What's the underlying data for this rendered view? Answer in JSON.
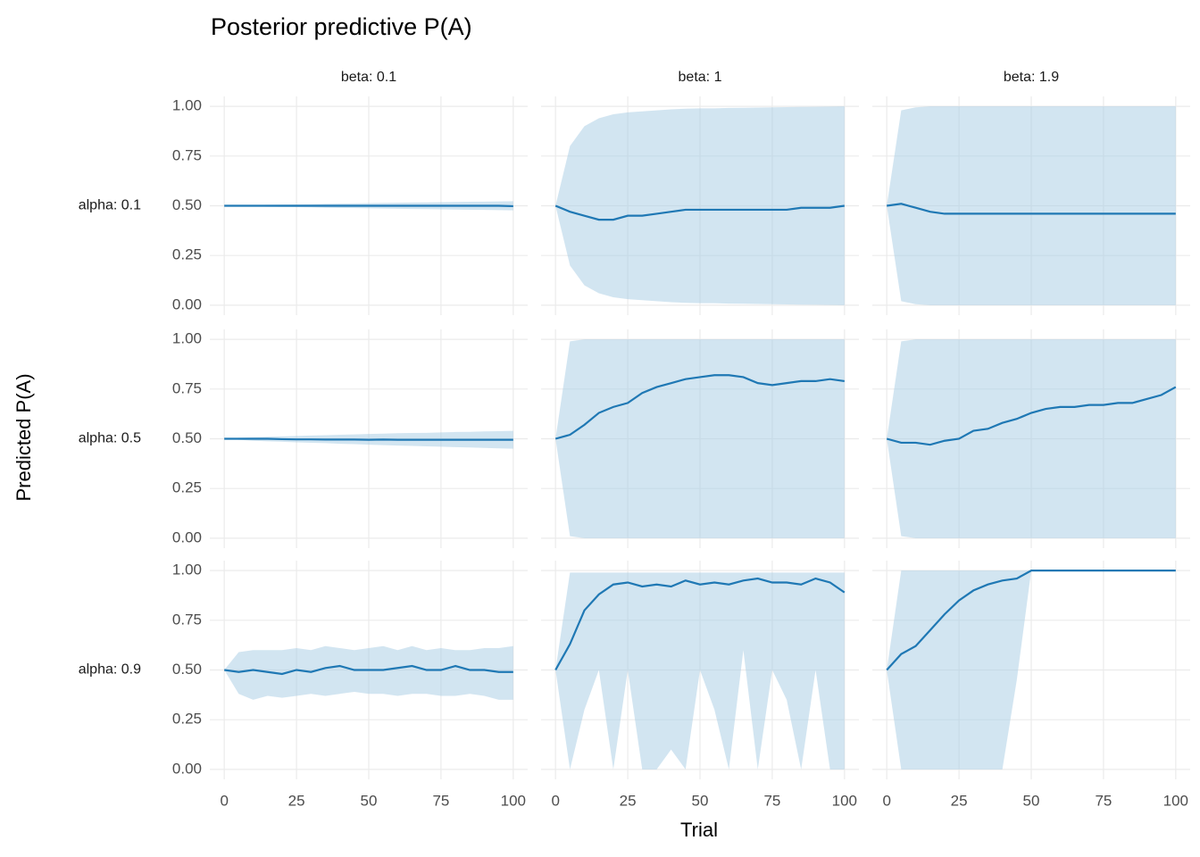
{
  "chart_data": {
    "type": "facet_ribbon",
    "title": "Posterior predictive P(A)",
    "x_label": "Trial",
    "y_label": "Predicted P(A)",
    "col_labels": [
      "beta: 0.1",
      "beta: 1",
      "beta: 1.9"
    ],
    "row_labels": [
      "alpha: 0.1",
      "alpha: 0.5",
      "alpha: 0.9"
    ],
    "xlim": [
      -5,
      105
    ],
    "xticks": [
      0,
      25,
      50,
      75,
      100
    ],
    "ylim": [
      -0.05,
      1.05
    ],
    "yticks": [
      {
        "value": 0,
        "label": "0.00"
      },
      {
        "value": 0.25,
        "label": "0.25"
      },
      {
        "value": 0.5,
        "label": "0.50"
      },
      {
        "value": 0.75,
        "label": "0.75"
      },
      {
        "value": 1,
        "label": "1.00"
      }
    ],
    "grid": true,
    "line_color": "#1f78b4",
    "band_color": "#a6cbe3",
    "x": [
      0,
      5,
      10,
      15,
      20,
      25,
      30,
      35,
      40,
      45,
      50,
      55,
      60,
      65,
      70,
      75,
      80,
      85,
      90,
      95,
      100
    ],
    "panels": [
      {
        "mean": [
          0.5,
          0.5,
          0.5,
          0.5,
          0.5,
          0.5,
          0.5,
          0.5,
          0.5,
          0.5,
          0.5,
          0.5,
          0.5,
          0.5,
          0.5,
          0.5,
          0.5,
          0.5,
          0.5,
          0.5,
          0.498
        ],
        "lower": [
          0.5,
          0.498,
          0.497,
          0.495,
          0.494,
          0.493,
          0.492,
          0.49,
          0.489,
          0.488,
          0.487,
          0.486,
          0.485,
          0.484,
          0.483,
          0.482,
          0.481,
          0.48,
          0.479,
          0.478,
          0.477
        ],
        "upper": [
          0.5,
          0.502,
          0.503,
          0.505,
          0.506,
          0.507,
          0.508,
          0.51,
          0.511,
          0.512,
          0.513,
          0.514,
          0.515,
          0.516,
          0.517,
          0.518,
          0.519,
          0.52,
          0.521,
          0.522,
          0.523
        ]
      },
      {
        "mean": [
          0.5,
          0.47,
          0.45,
          0.43,
          0.43,
          0.45,
          0.45,
          0.46,
          0.47,
          0.48,
          0.48,
          0.48,
          0.48,
          0.48,
          0.48,
          0.48,
          0.48,
          0.49,
          0.49,
          0.49,
          0.5
        ],
        "lower": [
          0.5,
          0.2,
          0.1,
          0.06,
          0.04,
          0.03,
          0.025,
          0.02,
          0.015,
          0.012,
          0.01,
          0.01,
          0.008,
          0.007,
          0.006,
          0.005,
          0.004,
          0.003,
          0.002,
          0.001,
          0
        ],
        "upper": [
          0.5,
          0.8,
          0.9,
          0.94,
          0.96,
          0.97,
          0.975,
          0.98,
          0.985,
          0.988,
          0.99,
          0.99,
          0.992,
          0.993,
          0.994,
          0.995,
          0.996,
          0.997,
          0.998,
          0.999,
          1
        ]
      },
      {
        "mean": [
          0.5,
          0.51,
          0.49,
          0.47,
          0.46,
          0.46,
          0.46,
          0.46,
          0.46,
          0.46,
          0.46,
          0.46,
          0.46,
          0.46,
          0.46,
          0.46,
          0.46,
          0.46,
          0.46,
          0.46,
          0.46
        ],
        "lower": [
          0.5,
          0.02,
          0.005,
          0,
          0,
          0,
          0,
          0,
          0,
          0,
          0,
          0,
          0,
          0,
          0,
          0,
          0,
          0,
          0,
          0,
          0
        ],
        "upper": [
          0.5,
          0.98,
          0.995,
          1,
          1,
          1,
          1,
          1,
          1,
          1,
          1,
          1,
          1,
          1,
          1,
          1,
          1,
          1,
          1,
          1,
          1
        ]
      },
      {
        "mean": [
          0.5,
          0.5,
          0.5,
          0.5,
          0.498,
          0.497,
          0.497,
          0.496,
          0.496,
          0.496,
          0.495,
          0.496,
          0.495,
          0.495,
          0.495,
          0.495,
          0.495,
          0.495,
          0.495,
          0.495,
          0.495
        ],
        "lower": [
          0.5,
          0.495,
          0.49,
          0.487,
          0.485,
          0.482,
          0.48,
          0.478,
          0.475,
          0.473,
          0.47,
          0.468,
          0.466,
          0.464,
          0.462,
          0.46,
          0.458,
          0.456,
          0.454,
          0.452,
          0.45
        ],
        "upper": [
          0.5,
          0.505,
          0.508,
          0.51,
          0.512,
          0.514,
          0.516,
          0.518,
          0.52,
          0.522,
          0.524,
          0.526,
          0.528,
          0.529,
          0.53,
          0.532,
          0.534,
          0.535,
          0.537,
          0.538,
          0.54
        ]
      },
      {
        "mean": [
          0.5,
          0.52,
          0.57,
          0.63,
          0.66,
          0.68,
          0.73,
          0.76,
          0.78,
          0.8,
          0.81,
          0.82,
          0.82,
          0.81,
          0.78,
          0.77,
          0.78,
          0.79,
          0.79,
          0.8,
          0.79
        ],
        "lower": [
          0.5,
          0.01,
          0,
          0,
          0,
          0,
          0,
          0,
          0,
          0,
          0,
          0,
          0,
          0,
          0,
          0,
          0,
          0,
          0,
          0,
          0
        ],
        "upper": [
          0.5,
          0.99,
          1,
          1,
          1,
          1,
          1,
          1,
          1,
          1,
          1,
          1,
          1,
          1,
          1,
          1,
          1,
          1,
          1,
          1,
          1
        ]
      },
      {
        "mean": [
          0.5,
          0.48,
          0.48,
          0.47,
          0.49,
          0.5,
          0.54,
          0.55,
          0.58,
          0.6,
          0.63,
          0.65,
          0.66,
          0.66,
          0.67,
          0.67,
          0.68,
          0.68,
          0.7,
          0.72,
          0.76
        ],
        "lower": [
          0.5,
          0.01,
          0,
          0,
          0,
          0,
          0,
          0,
          0,
          0,
          0,
          0,
          0,
          0,
          0,
          0,
          0,
          0,
          0,
          0,
          0
        ],
        "upper": [
          0.5,
          0.99,
          1,
          1,
          1,
          1,
          1,
          1,
          1,
          1,
          1,
          1,
          1,
          1,
          1,
          1,
          1,
          1,
          1,
          1,
          1
        ]
      },
      {
        "mean": [
          0.5,
          0.49,
          0.5,
          0.49,
          0.48,
          0.5,
          0.49,
          0.51,
          0.52,
          0.5,
          0.5,
          0.5,
          0.51,
          0.52,
          0.5,
          0.5,
          0.52,
          0.5,
          0.5,
          0.49,
          0.49
        ],
        "lower": [
          0.5,
          0.38,
          0.35,
          0.37,
          0.36,
          0.37,
          0.38,
          0.37,
          0.38,
          0.39,
          0.38,
          0.38,
          0.37,
          0.38,
          0.38,
          0.37,
          0.37,
          0.38,
          0.37,
          0.35,
          0.35
        ],
        "upper": [
          0.5,
          0.59,
          0.6,
          0.6,
          0.6,
          0.61,
          0.6,
          0.62,
          0.61,
          0.6,
          0.61,
          0.62,
          0.6,
          0.62,
          0.6,
          0.61,
          0.6,
          0.6,
          0.61,
          0.61,
          0.62
        ]
      },
      {
        "mean": [
          0.5,
          0.63,
          0.8,
          0.88,
          0.93,
          0.94,
          0.92,
          0.93,
          0.92,
          0.95,
          0.93,
          0.94,
          0.93,
          0.95,
          0.96,
          0.94,
          0.94,
          0.93,
          0.96,
          0.94,
          0.89
        ],
        "lower": [
          0.5,
          0,
          0.3,
          0.5,
          0,
          0.5,
          0,
          0,
          0.1,
          0,
          0.5,
          0.3,
          0,
          0.6,
          0,
          0.5,
          0.35,
          0,
          0.5,
          0,
          0
        ],
        "upper": [
          0.5,
          0.99,
          0.99,
          0.99,
          0.99,
          0.99,
          0.99,
          0.99,
          0.99,
          0.99,
          0.99,
          0.99,
          0.99,
          0.99,
          0.99,
          0.99,
          0.99,
          0.99,
          0.99,
          0.99,
          0.99
        ]
      },
      {
        "mean": [
          0.5,
          0.58,
          0.62,
          0.7,
          0.78,
          0.85,
          0.9,
          0.93,
          0.95,
          0.96,
          1,
          1,
          1,
          1,
          1,
          1,
          1,
          1,
          1,
          1,
          1
        ],
        "lower": [
          0.5,
          0,
          0,
          0,
          0,
          0,
          0,
          0,
          0,
          0.45,
          1,
          1,
          1,
          1,
          1,
          1,
          1,
          1,
          1,
          1,
          1
        ],
        "upper": [
          0.5,
          1,
          1,
          1,
          1,
          1,
          1,
          1,
          1,
          1,
          1,
          1,
          1,
          1,
          1,
          1,
          1,
          1,
          1,
          1,
          1
        ]
      }
    ]
  }
}
